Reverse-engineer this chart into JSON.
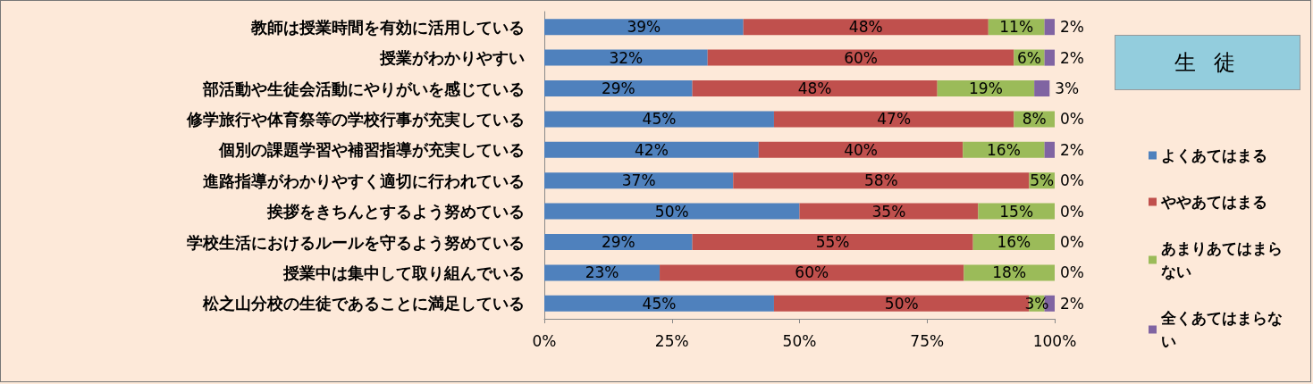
{
  "chart_data": {
    "type": "bar",
    "orientation": "horizontal",
    "stacked": true,
    "title": "生 徒",
    "legend": "right",
    "grid": false,
    "categories": [
      "教師は授業時間を有効に活用している",
      "授業がわかりやすい",
      "部活動や生徒会活動にやりがいを感じている",
      "修学旅行や体育祭等の学校行事が充実している",
      "個別の課題学習や補習指導が充実している",
      "進路指導がわかりやすく適切に行われている",
      "挨拶をきちんとするよう努めている",
      "学校生活におけるルールを守るよう努めている",
      "授業中は集中して取り組んでいる",
      "松之山分校の生徒であることに満足している"
    ],
    "xlim": [
      0,
      100
    ],
    "xticks": [
      {
        "value": 0,
        "label": "0%"
      },
      {
        "value": 25,
        "label": "25%"
      },
      {
        "value": 50,
        "label": "50%"
      },
      {
        "value": 75,
        "label": "75%"
      },
      {
        "value": 100,
        "label": "100%"
      }
    ],
    "series": [
      {
        "name": "よくあてはまる",
        "color": "#4f81bd",
        "values": [
          39,
          32,
          29,
          45,
          42,
          37,
          50,
          29,
          22.6,
          45
        ],
        "value_labels": [
          "39%",
          "32%",
          "29%",
          "45%",
          "42%",
          "37%",
          "50%",
          "29%",
          "23%",
          "45%"
        ]
      },
      {
        "name": "ややあてはまる",
        "color": "#c0504d",
        "values": [
          48,
          60,
          48,
          47,
          40,
          58,
          35,
          55,
          59.6,
          50
        ],
        "value_labels": [
          "48%",
          "60%",
          "48%",
          "47%",
          "40%",
          "58%",
          "35%",
          "55%",
          "60%",
          "50%"
        ]
      },
      {
        "name": "あまりあてはまらない",
        "color": "#9bbb59",
        "values": [
          11,
          6,
          19,
          8,
          16,
          5,
          15,
          16,
          17.8,
          3
        ],
        "value_labels": [
          "11%",
          "6%",
          "19%",
          "8%",
          "16%",
          "5%",
          "15%",
          "16%",
          "18%",
          "3%"
        ]
      },
      {
        "name": "全くあてはまらない",
        "color": "#8064a2",
        "values": [
          2,
          2,
          3,
          0,
          2,
          0,
          0,
          0,
          0,
          2
        ],
        "value_labels": [
          "2%",
          "2%",
          "3%",
          "0%",
          "2%",
          "0%",
          "0%",
          "0%",
          "0%",
          "2%"
        ]
      }
    ]
  }
}
